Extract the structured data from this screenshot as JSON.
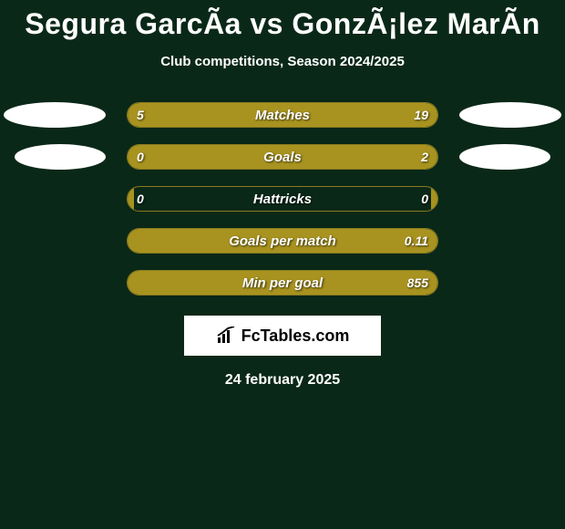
{
  "background_color": "#0a2818",
  "title": "Segura GarcÃ­a vs GonzÃ¡lez MarÃ­n",
  "title_color": "#ffffff",
  "title_fontsize": 32,
  "subtitle": "Club competitions, Season 2024/2025",
  "subtitle_color": "#ffffff",
  "subtitle_fontsize": 15,
  "bar_track_width": 342,
  "bar_track_height": 28,
  "bar_border_color": "#8a7a1f",
  "left_fill_color": "#a89320",
  "right_fill_color": "#a89320",
  "ellipse_color": "#ffffff",
  "rows": [
    {
      "label": "Matches",
      "left_val": "5",
      "right_val": "19",
      "left_pct": 21,
      "right_pct": 79,
      "show_ellipses": true
    },
    {
      "label": "Goals",
      "left_val": "0",
      "right_val": "2",
      "left_pct": 2,
      "right_pct": 98,
      "show_ellipses": true,
      "ellipse_left_inset": 16,
      "ellipse_right_inset": 16,
      "ellipse_width": 100
    },
    {
      "label": "Hattricks",
      "left_val": "0",
      "right_val": "0",
      "left_pct": 2,
      "right_pct": 2,
      "show_ellipses": false
    },
    {
      "label": "Goals per match",
      "left_val": "",
      "right_val": "0.11",
      "left_pct": 2,
      "right_pct": 98,
      "show_ellipses": false
    },
    {
      "label": "Min per goal",
      "left_val": "",
      "right_val": "855",
      "left_pct": 2,
      "right_pct": 98,
      "show_ellipses": false
    }
  ],
  "logo_text": "FcTables.com",
  "date": "24 february 2025"
}
